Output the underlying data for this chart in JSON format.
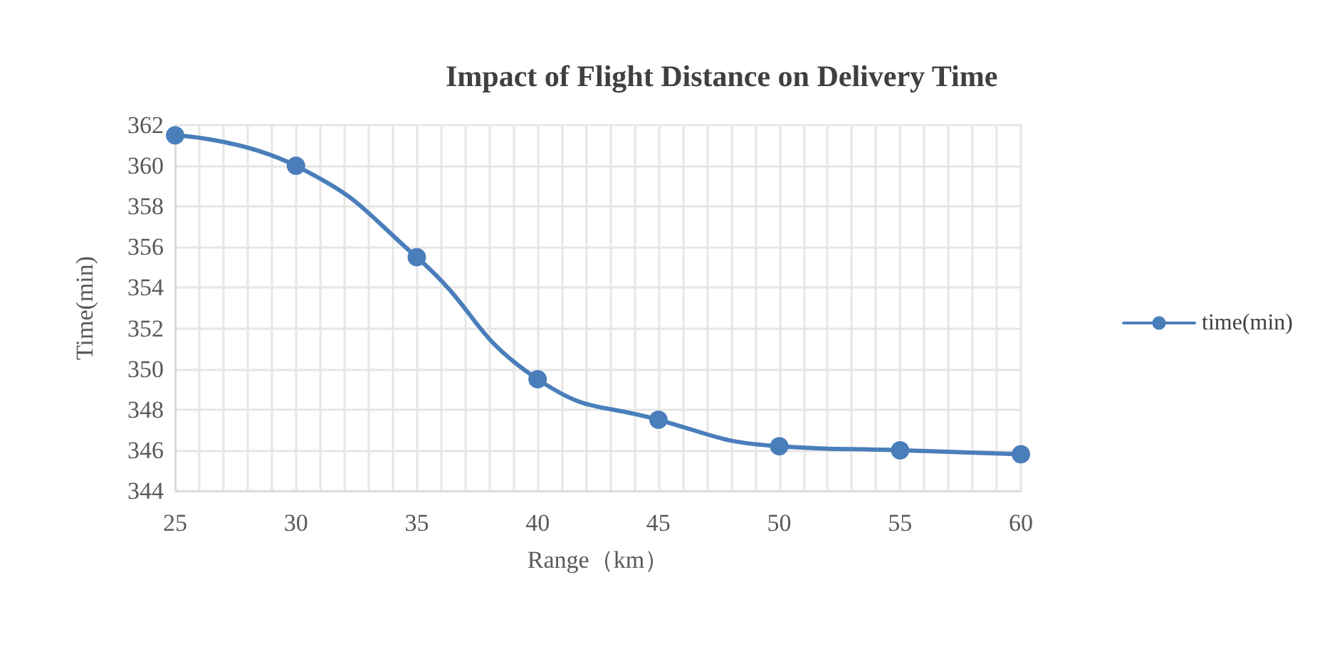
{
  "chart_data": {
    "type": "line",
    "title": "Impact of Flight Distance on Delivery Time",
    "xlabel": "Range（km）",
    "ylabel": "Time(min)",
    "x": [
      25,
      30,
      35,
      40,
      45,
      50,
      55,
      60
    ],
    "series": [
      {
        "name": "time(min)",
        "color": "#4a7ebb",
        "values": [
          361.5,
          360,
          355.5,
          349.5,
          347.5,
          346.2,
          346,
          345.8
        ]
      }
    ],
    "xlim": [
      25,
      60
    ],
    "xticks": [
      25,
      30,
      35,
      40,
      45,
      50,
      55,
      60
    ],
    "ylim": [
      344,
      362
    ],
    "yticks": [
      344,
      346,
      348,
      350,
      352,
      354,
      356,
      358,
      360,
      362
    ],
    "grid": true,
    "legend": "right",
    "marker": "circle",
    "line_style": "solid"
  }
}
